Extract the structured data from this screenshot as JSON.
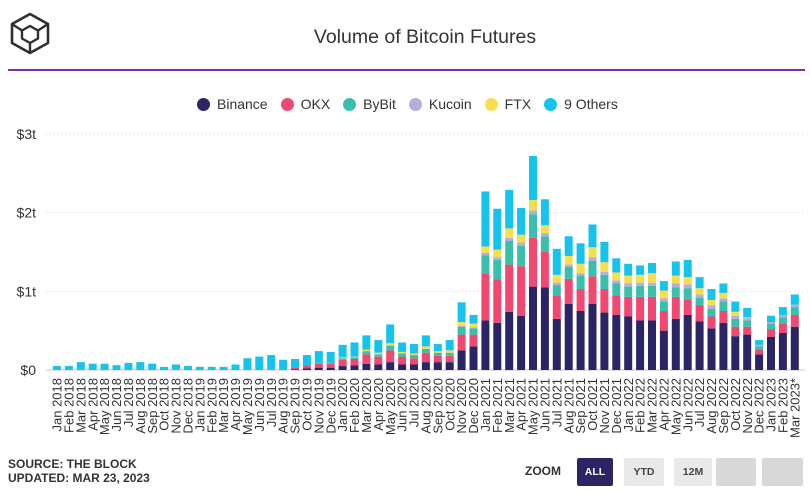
{
  "theme": {
    "accent": "#7d2fa8",
    "active_button": "#2b2566"
  },
  "chart_data": {
    "type": "bar",
    "stacked": true,
    "title": "Volume of Bitcoin Futures",
    "legend_position": "top",
    "grid": true,
    "ylim": [
      0,
      3
    ],
    "yticks": [
      {
        "value": 0,
        "label": "$0"
      },
      {
        "value": 1,
        "label": "$1t"
      },
      {
        "value": 2,
        "label": "$2t"
      },
      {
        "value": 3,
        "label": "$3t"
      }
    ],
    "categories": [
      "Jan 2018",
      "Feb 2018",
      "Mar 2018",
      "Apr 2018",
      "May 2018",
      "Jun 2018",
      "Jul 2018",
      "Aug 2018",
      "Sep 2018",
      "Oct 2018",
      "Nov 2018",
      "Dec 2018",
      "Jan 2019",
      "Feb 2019",
      "Mar 2019",
      "Apr 2019",
      "May 2019",
      "Jun 2019",
      "Jul 2019",
      "Aug 2019",
      "Sep 2019",
      "Oct 2019",
      "Nov 2019",
      "Dec 2019",
      "Jan 2020",
      "Feb 2020",
      "Mar 2020",
      "Apr 2020",
      "May 2020",
      "Jun 2020",
      "Jul 2020",
      "Aug 2020",
      "Sep 2020",
      "Oct 2020",
      "Nov 2020",
      "Dec 2020",
      "Jan 2021",
      "Feb 2021",
      "Mar 2021",
      "Apr 2021",
      "May 2021",
      "Jun 2021",
      "Jul 2021",
      "Aug 2021",
      "Sep 2021",
      "Oct 2021",
      "Nov 2021",
      "Dec 2021",
      "Jan 2022",
      "Feb 2022",
      "Mar 2022",
      "Apr 2022",
      "May 2022",
      "Jun 2022",
      "Jul 2022",
      "Aug 2022",
      "Sep 2022",
      "Oct 2022",
      "Nov 2022",
      "Dec 2022",
      "Jan 2023",
      "Feb 2023",
      "Mar 2023*"
    ],
    "series": [
      {
        "name": "Binance",
        "color": "#2b2566",
        "values": [
          0,
          0,
          0,
          0,
          0,
          0,
          0,
          0,
          0,
          0,
          0,
          0,
          0,
          0,
          0,
          0,
          0,
          0,
          0,
          0,
          0.01,
          0.02,
          0.03,
          0.03,
          0.05,
          0.06,
          0.08,
          0.07,
          0.1,
          0.07,
          0.07,
          0.1,
          0.1,
          0.1,
          0.25,
          0.3,
          0.63,
          0.6,
          0.74,
          0.69,
          1.06,
          1.05,
          0.65,
          0.84,
          0.75,
          0.84,
          0.73,
          0.7,
          0.68,
          0.63,
          0.63,
          0.5,
          0.65,
          0.7,
          0.62,
          0.53,
          0.6,
          0.43,
          0.45,
          0.2,
          0.42,
          0.47,
          0.55
        ]
      },
      {
        "name": "OKX",
        "color": "#f04870",
        "values": [
          0,
          0,
          0,
          0,
          0,
          0,
          0,
          0,
          0,
          0,
          0,
          0,
          0,
          0,
          0,
          0,
          0,
          0,
          0,
          0,
          0.02,
          0.04,
          0.05,
          0.05,
          0.08,
          0.08,
          0.12,
          0.1,
          0.15,
          0.1,
          0.08,
          0.12,
          0.08,
          0.08,
          0.2,
          0.15,
          0.6,
          0.55,
          0.6,
          0.63,
          0.62,
          0.45,
          0.3,
          0.32,
          0.28,
          0.35,
          0.3,
          0.25,
          0.25,
          0.3,
          0.3,
          0.25,
          0.28,
          0.2,
          0.2,
          0.15,
          0.15,
          0.12,
          0.1,
          0.06,
          0.1,
          0.12,
          0.15
        ]
      },
      {
        "name": "ByBit",
        "color": "#3bbfad",
        "values": [
          0,
          0,
          0,
          0,
          0,
          0,
          0,
          0,
          0,
          0,
          0,
          0,
          0,
          0,
          0,
          0,
          0,
          0,
          0,
          0,
          0,
          0,
          0.01,
          0.01,
          0.02,
          0.02,
          0.04,
          0.03,
          0.06,
          0.04,
          0.04,
          0.05,
          0.04,
          0.04,
          0.1,
          0.08,
          0.23,
          0.25,
          0.3,
          0.26,
          0.3,
          0.2,
          0.13,
          0.15,
          0.17,
          0.2,
          0.18,
          0.15,
          0.13,
          0.14,
          0.14,
          0.12,
          0.12,
          0.14,
          0.1,
          0.1,
          0.12,
          0.1,
          0.08,
          0.04,
          0.07,
          0.08,
          0.1
        ]
      },
      {
        "name": "Kucoin",
        "color": "#b7acdc",
        "values": [
          0,
          0,
          0,
          0,
          0,
          0,
          0,
          0,
          0,
          0,
          0,
          0,
          0,
          0,
          0,
          0,
          0,
          0,
          0,
          0,
          0,
          0,
          0,
          0,
          0,
          0,
          0,
          0,
          0,
          0,
          0,
          0,
          0,
          0,
          0.01,
          0.01,
          0.03,
          0.03,
          0.04,
          0.04,
          0.05,
          0.04,
          0.03,
          0.03,
          0.03,
          0.04,
          0.04,
          0.04,
          0.04,
          0.04,
          0.04,
          0.04,
          0.05,
          0.05,
          0.04,
          0.04,
          0.04,
          0.04,
          0.03,
          0.02,
          0.02,
          0.03,
          0.03
        ]
      },
      {
        "name": "FTX",
        "color": "#f5df4d",
        "values": [
          0,
          0,
          0,
          0,
          0,
          0,
          0,
          0,
          0,
          0,
          0,
          0,
          0,
          0,
          0,
          0,
          0,
          0,
          0,
          0,
          0,
          0,
          0,
          0,
          0.01,
          0.01,
          0.02,
          0.02,
          0.03,
          0.02,
          0.02,
          0.03,
          0.02,
          0.03,
          0.05,
          0.05,
          0.08,
          0.1,
          0.12,
          0.1,
          0.13,
          0.1,
          0.1,
          0.11,
          0.12,
          0.13,
          0.12,
          0.1,
          0.1,
          0.1,
          0.12,
          0.1,
          0.1,
          0.09,
          0.08,
          0.07,
          0.07,
          0.05,
          0.01,
          0,
          0,
          0,
          0
        ]
      },
      {
        "name": "9 Others",
        "color": "#15c3ec",
        "values": [
          0.05,
          0.05,
          0.1,
          0.08,
          0.08,
          0.06,
          0.09,
          0.1,
          0.08,
          0.04,
          0.07,
          0.05,
          0.04,
          0.04,
          0.04,
          0.07,
          0.15,
          0.17,
          0.19,
          0.13,
          0.11,
          0.13,
          0.15,
          0.14,
          0.16,
          0.18,
          0.18,
          0.16,
          0.24,
          0.12,
          0.12,
          0.14,
          0.09,
          0.13,
          0.25,
          0.11,
          0.7,
          0.52,
          0.49,
          0.34,
          0.56,
          0.33,
          0.33,
          0.25,
          0.26,
          0.29,
          0.26,
          0.18,
          0.15,
          0.12,
          0.13,
          0.12,
          0.18,
          0.22,
          0.14,
          0.14,
          0.12,
          0.13,
          0.12,
          0.06,
          0.08,
          0.1,
          0.13
        ]
      }
    ]
  },
  "footer": {
    "source": "SOURCE: THE BLOCK",
    "updated": "UPDATED: MAR 23, 2023"
  },
  "zoom": {
    "label": "ZOOM",
    "buttons": [
      {
        "label": "ALL",
        "active": true
      },
      {
        "label": "YTD",
        "active": false
      },
      {
        "label": "12M",
        "active": false
      },
      {
        "disabled": true
      },
      {
        "disabled": true
      }
    ]
  }
}
